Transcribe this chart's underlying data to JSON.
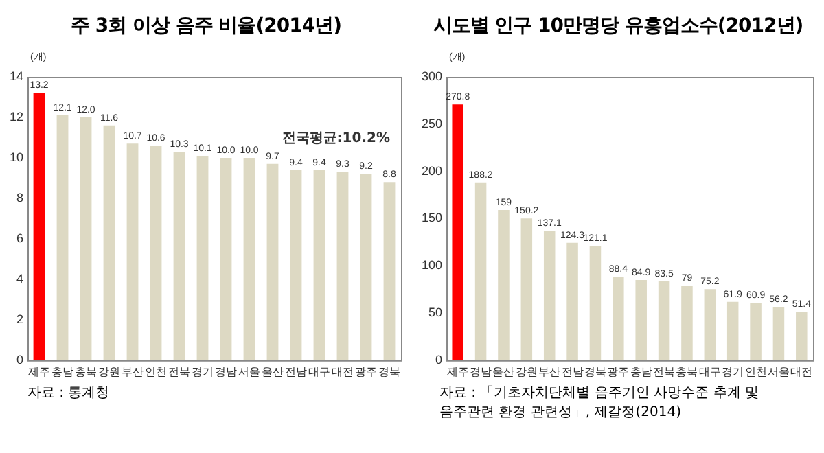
{
  "chart_data": [
    {
      "type": "bar",
      "title": "주 3회 이상 음주 비율(2014년)",
      "ylabel": "(개)",
      "categories": [
        "제주",
        "충남",
        "충북",
        "강원",
        "부산",
        "인천",
        "전북",
        "경기",
        "경남",
        "서울",
        "울산",
        "전남",
        "대구",
        "대전",
        "광주",
        "경북"
      ],
      "values": [
        13.2,
        12.1,
        12.0,
        11.6,
        10.7,
        10.6,
        10.3,
        10.1,
        10.0,
        10.0,
        9.7,
        9.4,
        9.4,
        9.3,
        9.2,
        8.8
      ],
      "value_labels": [
        "13.2",
        "12.1",
        "12.0",
        "11.6",
        "10.7",
        "10.6",
        "10.3",
        "10.1",
        "10.0",
        "10.0",
        "9.7",
        "9.4",
        "9.4",
        "9.3",
        "9.2",
        "8.8"
      ],
      "colors": [
        "#ff0000",
        "#ddd9c3",
        "#ddd9c3",
        "#ddd9c3",
        "#ddd9c3",
        "#ddd9c3",
        "#ddd9c3",
        "#ddd9c3",
        "#ddd9c3",
        "#ddd9c3",
        "#ddd9c3",
        "#ddd9c3",
        "#ddd9c3",
        "#ddd9c3",
        "#ddd9c3",
        "#ddd9c3"
      ],
      "ylim": [
        0,
        14
      ],
      "yticks": [
        0,
        2,
        4,
        6,
        8,
        10,
        12,
        14
      ],
      "grid": false,
      "legend": false,
      "annotations": [
        "전국평균:10.2%",
        "자료 : 통계청"
      ]
    },
    {
      "type": "bar",
      "title": "시도별 인구 10만명당 유흥업소수(2012년)",
      "ylabel": "(개)",
      "categories": [
        "제주",
        "경남",
        "울산",
        "강원",
        "부산",
        "전남",
        "경북",
        "광주",
        "충남",
        "전북",
        "충북",
        "대구",
        "경기",
        "인천",
        "서울",
        "대전"
      ],
      "values": [
        270.8,
        188.2,
        159,
        150.2,
        137.1,
        124.3,
        121.1,
        88.4,
        84.9,
        83.5,
        79,
        75.2,
        61.9,
        60.9,
        56.2,
        51.4
      ],
      "data_labels": true,
      "colors": [
        "#ff0000",
        "#ddd9c3",
        "#ddd9c3",
        "#ddd9c3",
        "#ddd9c3",
        "#ddd9c3",
        "#ddd9c3",
        "#ddd9c3",
        "#ddd9c3",
        "#ddd9c3",
        "#ddd9c3",
        "#ddd9c3",
        "#ddd9c3",
        "#ddd9c3",
        "#ddd9c3",
        "#ddd9c3"
      ],
      "ylim": [
        0,
        300
      ],
      "yticks": [
        0,
        50,
        100,
        150,
        200,
        250,
        300
      ],
      "grid": false,
      "legend": false,
      "annotations": [
        "자료 : 「기초자치단체별 음주기인 사망수준 추계 및\n음주관련 환경 관련성」, 제갈정(2014)"
      ]
    }
  ]
}
